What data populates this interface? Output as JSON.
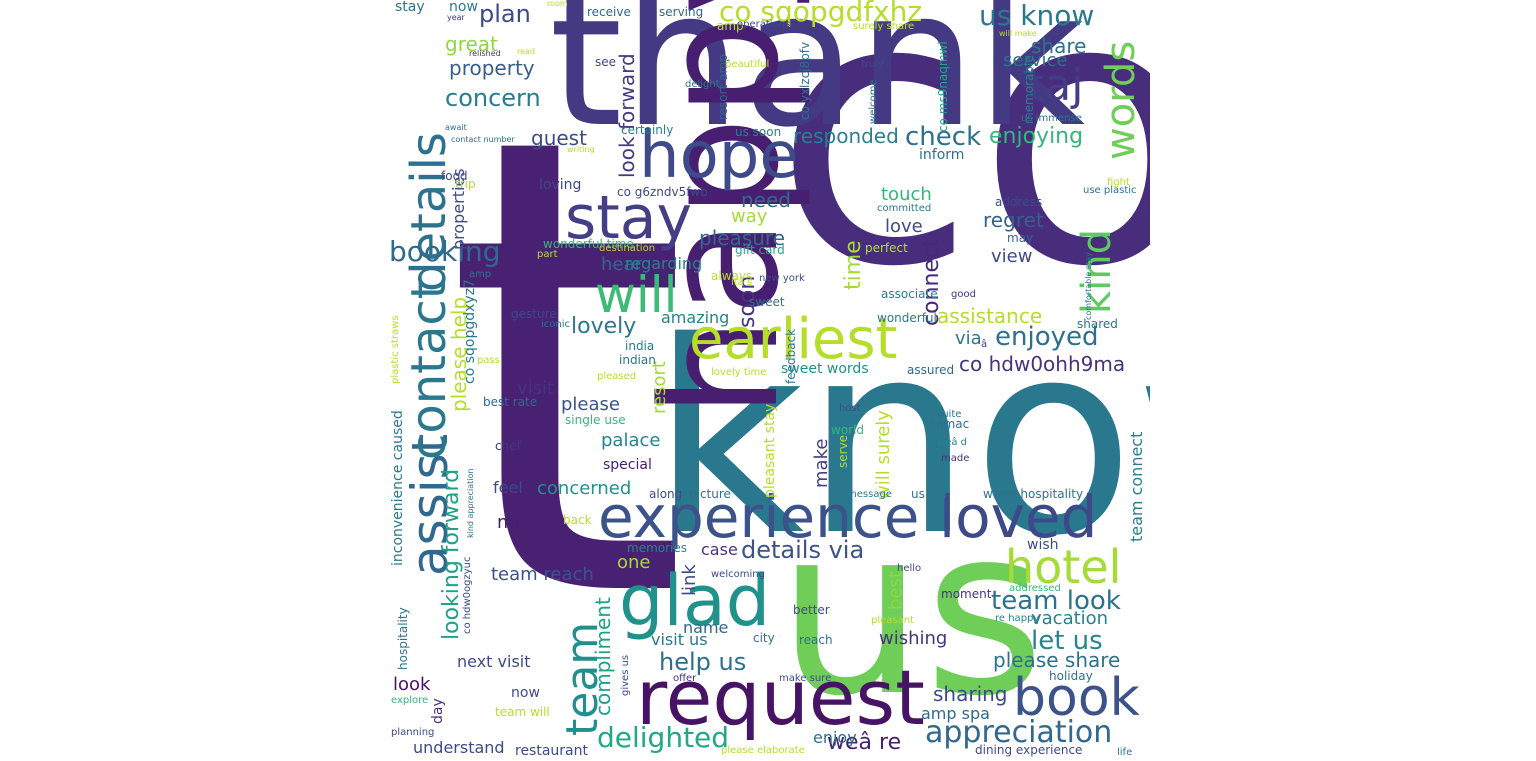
{
  "words": [
    {
      "text": "co",
      "color": "#472d7b"
    },
    {
      "text": "t",
      "color": "#482173"
    },
    {
      "text": "know",
      "color": "#2a788e"
    },
    {
      "text": "thank",
      "color": "#443a83"
    },
    {
      "text": "us",
      "color": "#6ece58"
    },
    {
      "text": "happy",
      "color": "#481f70"
    },
    {
      "text": "request",
      "color": "#471365"
    },
    {
      "text": "experience",
      "color": "#3b528b"
    },
    {
      "text": "loved",
      "color": "#3e4989"
    },
    {
      "text": "earliest",
      "color": "#b5de2b"
    },
    {
      "text": "hope",
      "color": "#3e4a89"
    },
    {
      "text": "stay",
      "color": "#433e85"
    },
    {
      "text": "glad",
      "color": "#21918c"
    },
    {
      "text": "details",
      "color": "#2c728e"
    },
    {
      "text": "assist",
      "color": "#31688e"
    },
    {
      "text": "contact",
      "color": "#2a788e"
    },
    {
      "text": "book",
      "color": "#3b528b"
    },
    {
      "text": "hotel",
      "color": "#a5db36"
    },
    {
      "text": "team",
      "color": "#218f8d"
    },
    {
      "text": "will",
      "color": "#3bbb75"
    },
    {
      "text": "kind",
      "color": "#5ec962"
    },
    {
      "text": "words",
      "color": "#6ece58"
    },
    {
      "text": "taj",
      "color": "#433e85"
    },
    {
      "text": "appreciation",
      "color": "#31688e"
    },
    {
      "text": "booking",
      "color": "#31688e"
    },
    {
      "text": "delighted",
      "color": "#22a884"
    },
    {
      "text": "details via",
      "color": "#3b528b"
    },
    {
      "text": "co sqopgdfxhz",
      "color": "#b5de2b"
    },
    {
      "text": "us know",
      "color": "#2a788e"
    },
    {
      "text": "team look",
      "color": "#2c728e"
    },
    {
      "text": "let us",
      "color": "#25848e"
    },
    {
      "text": "help us",
      "color": "#2d708e"
    },
    {
      "text": "enjoyed",
      "color": "#2d708e"
    },
    {
      "text": "co hdw0ohh9ma",
      "color": "#46337f"
    },
    {
      "text": "concern",
      "color": "#287d8e"
    },
    {
      "text": "check",
      "color": "#2d708e"
    },
    {
      "text": "enjoying",
      "color": "#35b779"
    },
    {
      "text": "plan",
      "color": "#3e4989"
    },
    {
      "text": "looking forward",
      "color": "#1fa188"
    },
    {
      "text": "please help",
      "color": "#b5de2b"
    },
    {
      "text": "lovely",
      "color": "#2a788e"
    },
    {
      "text": "pleasure",
      "color": "#31688e"
    },
    {
      "text": "please share",
      "color": "#2c728e"
    },
    {
      "text": "compliment",
      "color": "#1fa188"
    },
    {
      "text": "weâ re",
      "color": "#481f70"
    },
    {
      "text": "soon",
      "color": "#46337f"
    },
    {
      "text": "connect",
      "color": "#482878"
    },
    {
      "text": "time",
      "color": "#a5db36"
    },
    {
      "text": "assistance",
      "color": "#b5de2b"
    },
    {
      "text": "regret",
      "color": "#355f8d"
    },
    {
      "text": "responded",
      "color": "#26828e"
    },
    {
      "text": "share",
      "color": "#2c728e"
    },
    {
      "text": "service",
      "color": "#2d708e"
    },
    {
      "text": "property",
      "color": "#355f8d"
    },
    {
      "text": "great",
      "color": "#90d743"
    },
    {
      "text": "guest",
      "color": "#3e4989"
    },
    {
      "text": "look forward",
      "color": "#443a83"
    },
    {
      "text": "vacation",
      "color": "#26828e"
    },
    {
      "text": "wishing",
      "color": "#46337f"
    },
    {
      "text": "sharing",
      "color": "#3e4989"
    },
    {
      "text": "amp spa",
      "color": "#31688e"
    },
    {
      "text": "team reach",
      "color": "#3b528b"
    },
    {
      "text": "hear",
      "color": "#31688e"
    },
    {
      "text": "regarding",
      "color": "#26828e"
    },
    {
      "text": "amazing",
      "color": "#26828e"
    },
    {
      "text": "need",
      "color": "#31688e"
    },
    {
      "text": "way",
      "color": "#a5db36"
    },
    {
      "text": "touch",
      "color": "#35b779"
    },
    {
      "text": "love",
      "color": "#3e4989"
    },
    {
      "text": "view",
      "color": "#3e4989"
    },
    {
      "text": "via",
      "color": "#2a788e"
    },
    {
      "text": "please",
      "color": "#3b528b"
    },
    {
      "text": "palace",
      "color": "#25848e"
    },
    {
      "text": "resort",
      "color": "#a5db36"
    },
    {
      "text": "visit",
      "color": "#46337f"
    },
    {
      "text": "concerned",
      "color": "#21918c"
    },
    {
      "text": "feel",
      "color": "#3e4989"
    },
    {
      "text": "mr",
      "color": "#481f70"
    },
    {
      "text": "properties",
      "color": "#3e4989"
    },
    {
      "text": "inconvenience caused",
      "color": "#2a788e"
    },
    {
      "text": "co sqopgdxyz7",
      "color": "#2a788e"
    },
    {
      "text": "look",
      "color": "#471365"
    },
    {
      "text": "next visit",
      "color": "#3e4989"
    },
    {
      "text": "one",
      "color": "#a5db36"
    },
    {
      "text": "case",
      "color": "#46337f"
    },
    {
      "text": "link",
      "color": "#3e4989"
    },
    {
      "text": "name",
      "color": "#31688e"
    },
    {
      "text": "visit us",
      "color": "#2a788e"
    },
    {
      "text": "best",
      "color": "#90d743"
    },
    {
      "text": "make",
      "color": "#433e85"
    },
    {
      "text": "will surely",
      "color": "#b5de2b"
    },
    {
      "text": "team connect",
      "color": "#287d8e"
    },
    {
      "text": "enjoy",
      "color": "#2c728e"
    },
    {
      "text": "understand",
      "color": "#3e4989"
    },
    {
      "text": "restaurant",
      "color": "#3e4989"
    },
    {
      "text": "day",
      "color": "#46337f"
    },
    {
      "text": "now",
      "color": "#3e4989"
    },
    {
      "text": "wish",
      "color": "#3e4989"
    },
    {
      "text": "now",
      "color": "#2a788e"
    },
    {
      "text": "stay",
      "color": "#2d708e"
    },
    {
      "text": "receive",
      "color": "#31688e"
    },
    {
      "text": "serving",
      "color": "#31688e"
    },
    {
      "text": "amp",
      "color": "#b5de2b"
    },
    {
      "text": "see",
      "color": "#3e4989"
    },
    {
      "text": "loving",
      "color": "#3e4989"
    },
    {
      "text": "certainly",
      "color": "#287d8e"
    },
    {
      "text": "co g6zndv5fwb",
      "color": "#3e4989"
    },
    {
      "text": "co yxlzcj8pfv",
      "color": "#2c728e"
    },
    {
      "text": "resort amp",
      "color": "#31688e"
    },
    {
      "text": "us soon",
      "color": "#26828e"
    },
    {
      "text": "inform",
      "color": "#2c728e"
    },
    {
      "text": "memorable",
      "color": "#26828e"
    },
    {
      "text": "co ms9naqmwl",
      "color": "#22a884"
    },
    {
      "text": "trip",
      "color": "#b5de2b"
    },
    {
      "text": "food",
      "color": "#3e4989"
    },
    {
      "text": "gesture",
      "color": "#3e4989"
    },
    {
      "text": "india",
      "color": "#2a788e"
    },
    {
      "text": "indian",
      "color": "#2c728e"
    },
    {
      "text": "best rate",
      "color": "#31688e"
    },
    {
      "text": "single use",
      "color": "#35b779"
    },
    {
      "text": "chef",
      "color": "#46337f"
    },
    {
      "text": "special",
      "color": "#481f70"
    },
    {
      "text": "along",
      "color": "#3e4989"
    },
    {
      "text": "picture",
      "color": "#2c728e"
    },
    {
      "text": "sweet words",
      "color": "#21918c"
    },
    {
      "text": "wonderful",
      "color": "#2a788e"
    },
    {
      "text": "feedback",
      "color": "#2a788e"
    },
    {
      "text": "pleasant stay",
      "color": "#b5de2b"
    },
    {
      "text": "world",
      "color": "#35b779"
    },
    {
      "text": "serve",
      "color": "#b5de2b"
    },
    {
      "text": "assured",
      "color": "#31688e"
    },
    {
      "text": "warm hospitality",
      "color": "#2c728e"
    },
    {
      "text": "us via",
      "color": "#2a788e"
    },
    {
      "text": "associate",
      "color": "#287d8e"
    },
    {
      "text": "wonderful time",
      "color": "#35b779"
    },
    {
      "text": "gift card",
      "color": "#22a884"
    },
    {
      "text": "perfect",
      "color": "#b5de2b"
    },
    {
      "text": "address",
      "color": "#3e4989"
    },
    {
      "text": "may",
      "color": "#31688e"
    },
    {
      "text": "shared",
      "color": "#2d708e"
    },
    {
      "text": "hospitality",
      "color": "#2c728e"
    },
    {
      "text": "back",
      "color": "#b5de2b"
    },
    {
      "text": "memories",
      "color": "#25848e"
    },
    {
      "text": "better",
      "color": "#3e4989"
    },
    {
      "text": "city",
      "color": "#2a788e"
    },
    {
      "text": "reach",
      "color": "#2c728e"
    },
    {
      "text": "moment",
      "color": "#46337f"
    },
    {
      "text": "holiday",
      "color": "#2c728e"
    },
    {
      "text": "dining experience",
      "color": "#3e4989"
    },
    {
      "text": "explore",
      "color": "#35b779"
    },
    {
      "text": "planning",
      "color": "#3e4989"
    },
    {
      "text": "team will",
      "color": "#b5de2b"
    },
    {
      "text": "please elaborate",
      "color": "#b5de2b"
    },
    {
      "text": "make sure",
      "color": "#3e4989"
    },
    {
      "text": "offer",
      "color": "#46337f"
    },
    {
      "text": "life",
      "color": "#2c728e"
    },
    {
      "text": "re happy",
      "color": "#26828e"
    },
    {
      "text": "addressed",
      "color": "#35b779"
    },
    {
      "text": "pleasant",
      "color": "#b5de2b"
    },
    {
      "text": "hello",
      "color": "#3e4989"
    },
    {
      "text": "welcoming",
      "color": "#3e4989"
    },
    {
      "text": "gives us",
      "color": "#3e4989"
    },
    {
      "text": "co hdw0ogzyuc",
      "color": "#3e4989"
    },
    {
      "text": "kind appreciation",
      "color": "#2c728e"
    },
    {
      "text": "plastic straws",
      "color": "#b5de2b"
    },
    {
      "text": "pass",
      "color": "#b5de2b"
    },
    {
      "text": "pleased",
      "color": "#b5de2b"
    },
    {
      "text": "iconic",
      "color": "#2c728e"
    },
    {
      "text": "lovely time",
      "color": "#b5de2b"
    },
    {
      "text": "host",
      "color": "#3e4989"
    },
    {
      "text": "message",
      "color": "#2a788e"
    },
    {
      "text": "suite",
      "color": "#2c728e"
    },
    {
      "text": "weâ d",
      "color": "#26828e"
    },
    {
      "text": "made",
      "color": "#46337f"
    },
    {
      "text": "j4nmac",
      "color": "#2c728e"
    },
    {
      "text": "â",
      "color": "#46337f"
    },
    {
      "text": "good",
      "color": "#46337f"
    },
    {
      "text": "comfortable stay",
      "color": "#2a788e"
    },
    {
      "text": "use plastic",
      "color": "#2c728e"
    },
    {
      "text": "fight",
      "color": "#b5de2b"
    },
    {
      "text": "itâ s",
      "color": "#b5de2b"
    },
    {
      "text": "new york",
      "color": "#3e4989"
    },
    {
      "text": "always",
      "color": "#b5de2b"
    },
    {
      "text": "sweet",
      "color": "#2c728e"
    },
    {
      "text": "destination",
      "color": "#b5de2b"
    },
    {
      "text": "part",
      "color": "#b5de2b"
    },
    {
      "text": "amp",
      "color": "#2c728e"
    },
    {
      "text": "committed",
      "color": "#2a788e"
    },
    {
      "text": "welcome",
      "color": "#2c728e"
    },
    {
      "text": "truly",
      "color": "#3e4989"
    },
    {
      "text": "delight",
      "color": "#2a788e"
    },
    {
      "text": "beautiful",
      "color": "#b5de2b"
    },
    {
      "text": "operations",
      "color": "#3e4989"
    },
    {
      "text": "surely share",
      "color": "#b5de2b"
    },
    {
      "text": "will make",
      "color": "#b5de2b"
    },
    {
      "text": "us immense",
      "color": "#2c728e"
    },
    {
      "text": "room",
      "color": "#b5de2b"
    },
    {
      "text": "year",
      "color": "#46337f"
    },
    {
      "text": "relished",
      "color": "#46337f"
    },
    {
      "text": "read",
      "color": "#b5de2b"
    },
    {
      "text": "await",
      "color": "#2c728e"
    },
    {
      "text": "writing",
      "color": "#b5de2b"
    },
    {
      "text": "contact number",
      "color": "#2c728e"
    }
  ]
}
